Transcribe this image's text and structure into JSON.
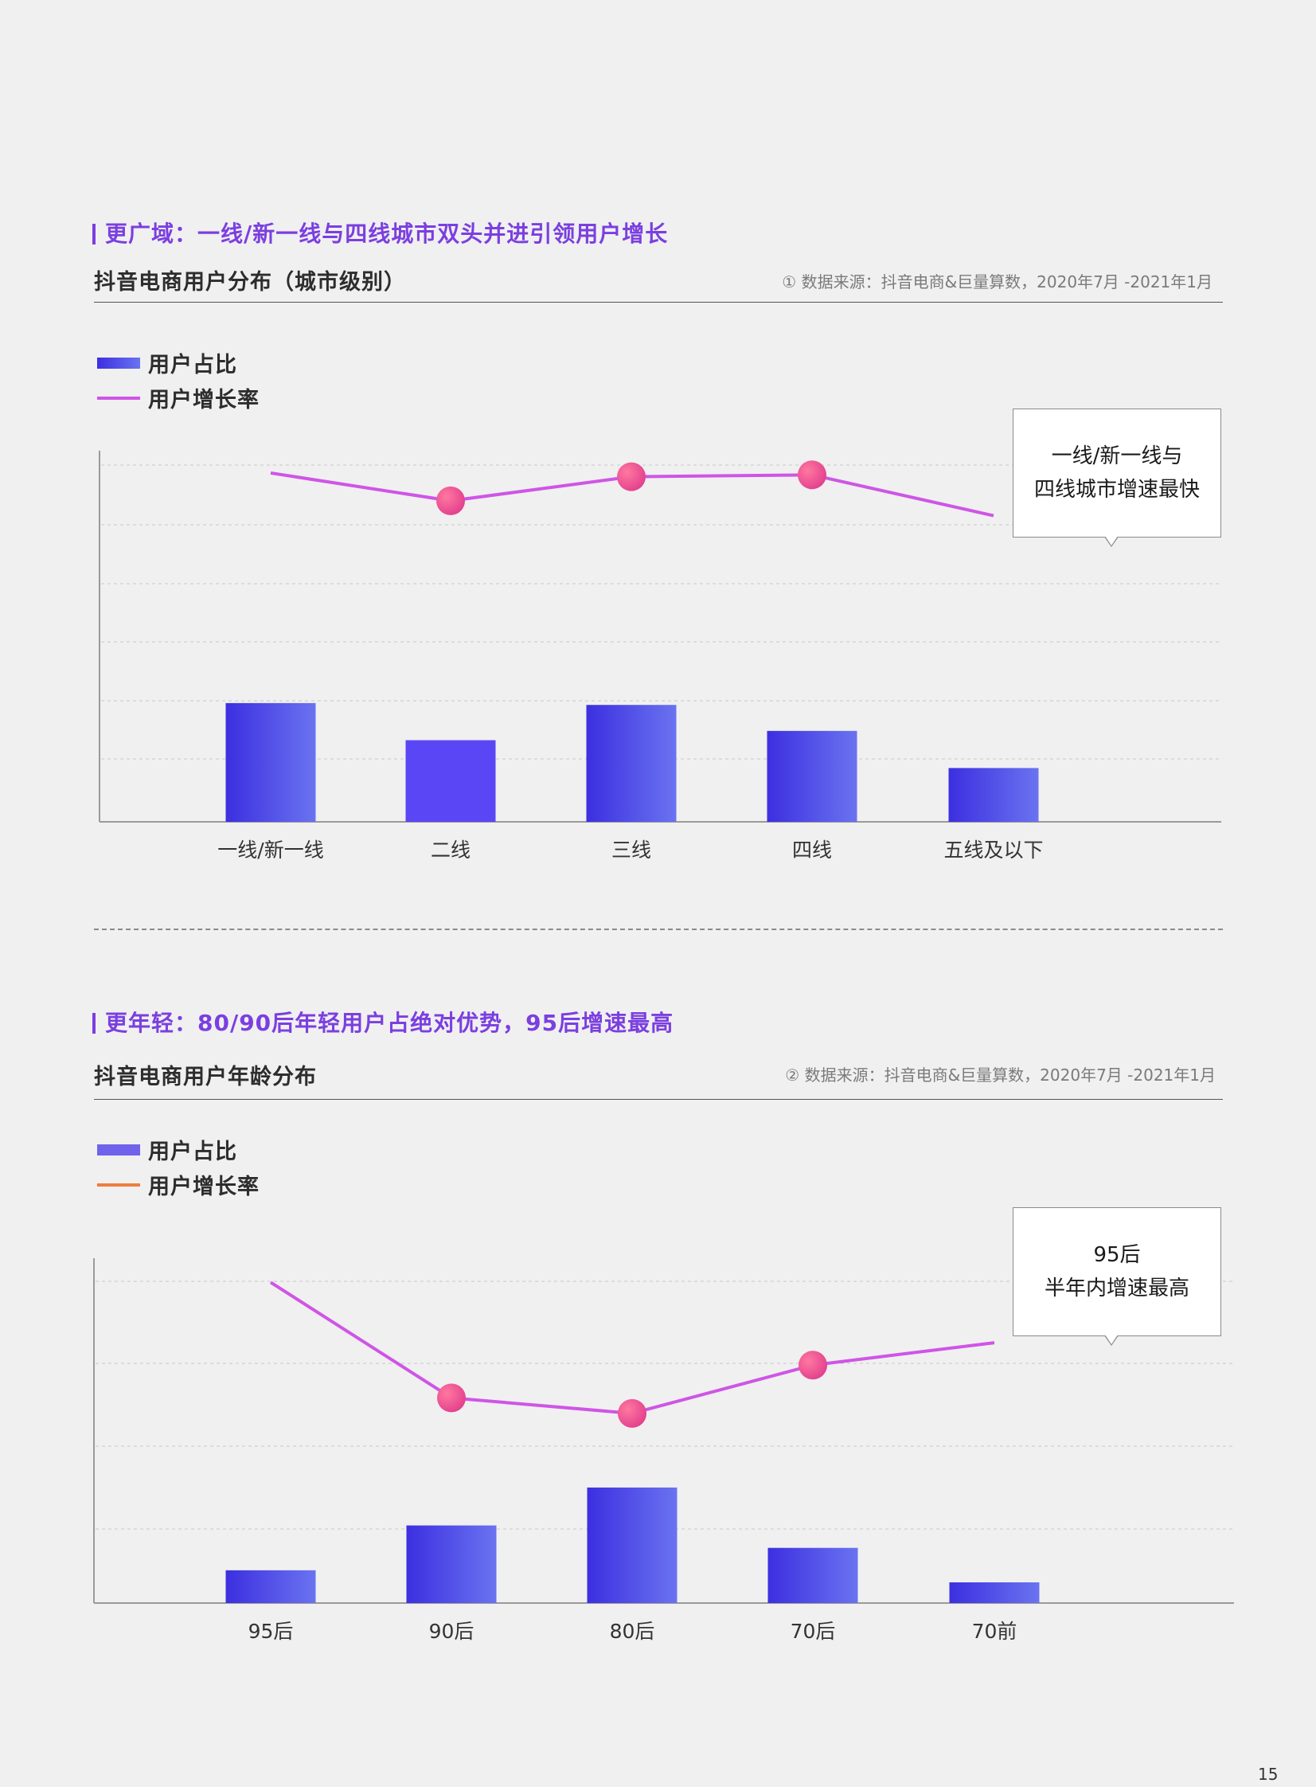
{
  "page_number": "15",
  "colors": {
    "bar_start": "#3c2fe0",
    "bar_end": "#6a73f0",
    "bar_solid": "#5b46f5",
    "line": "#cf55e6",
    "marker_start": "#ff78a0",
    "marker_end": "#e03c8c",
    "legend_line_2": "#f07c3e",
    "legend_bar_2": "#6f63ec",
    "headline": "#7b3fe0"
  },
  "section1": {
    "headline": "更广域：一线/新一线与四线城市双头并进引领用户增长",
    "subtitle": "抖音电商用户分布（城市级别）",
    "source": "① 数据来源：抖音电商&巨量算数，2020年7月 -2021年1月",
    "legend": {
      "bar": "用户占比",
      "line": "用户增长率"
    },
    "callout": {
      "line1": "一线/新一线与",
      "line2": "四线城市增速最快"
    }
  },
  "section2": {
    "headline": "更年轻：80/90后年轻用户占绝对优势，95后增速最高",
    "subtitle": "抖音电商用户年龄分布",
    "source": "② 数据来源：抖音电商&巨量算数，2020年7月 -2021年1月",
    "legend": {
      "bar": "用户占比",
      "line": "用户增长率"
    },
    "callout": {
      "line1": "95后",
      "line2": "半年内增速最高"
    }
  },
  "chart_data": [
    {
      "type": "bar",
      "title": "抖音电商用户分布（城市级别）",
      "categories": [
        "一线/新一线",
        "二线",
        "三线",
        "四线",
        "五线及以下"
      ],
      "ylim": [
        0,
        100
      ],
      "grid": true,
      "legend": "top-left",
      "series": [
        {
          "name": "用户占比",
          "kind": "bar",
          "values": [
            32,
            22,
            31.5,
            24.5,
            14.5
          ],
          "highlight_index": 1
        },
        {
          "name": "用户增长率",
          "kind": "line",
          "values": [
            94,
            86.5,
            93,
            93.5,
            82.5
          ],
          "markers": [
            1,
            2,
            3
          ]
        }
      ]
    },
    {
      "type": "bar",
      "title": "抖音电商用户年龄分布",
      "categories": [
        "95后",
        "90后",
        "80后",
        "70后",
        "70前"
      ],
      "ylim": [
        0,
        100
      ],
      "grid": true,
      "legend": "top-left",
      "series": [
        {
          "name": "用户占比",
          "kind": "bar",
          "values": [
            9.5,
            22.5,
            33.5,
            16,
            6
          ]
        },
        {
          "name": "用户增长率",
          "kind": "line",
          "values": [
            93,
            59.5,
            55,
            69,
            75.5
          ],
          "markers": [
            1,
            2,
            3
          ]
        }
      ]
    }
  ]
}
